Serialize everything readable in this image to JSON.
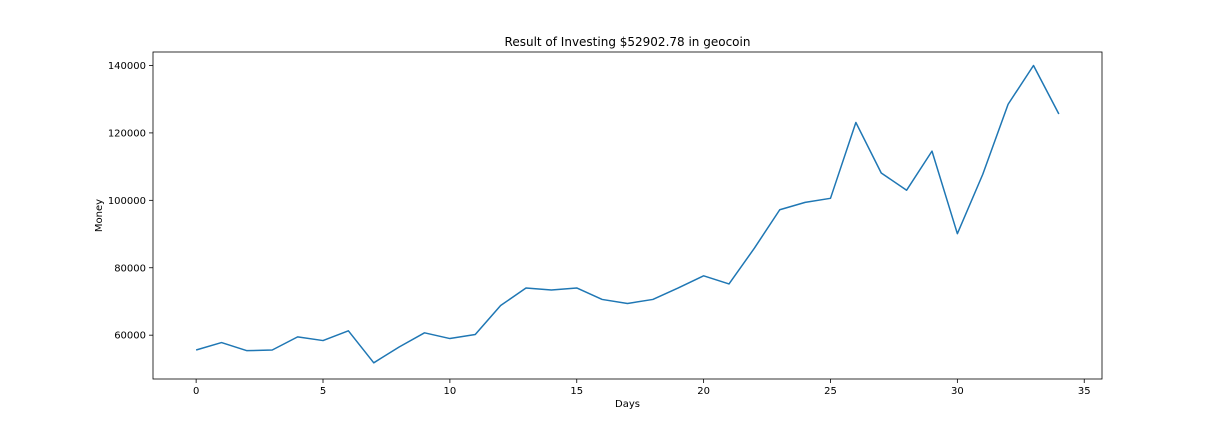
{
  "chart_data": {
    "type": "line",
    "title": "Result of Investing $52902.78 in geocoin",
    "xlabel": "Days",
    "ylabel": "Money",
    "xlim": [
      -1.7,
      35.7
    ],
    "ylim": [
      47000,
      144000
    ],
    "xticks": [
      0,
      5,
      10,
      15,
      20,
      25,
      30,
      35
    ],
    "xtick_labels": [
      "0",
      "5",
      "10",
      "15",
      "20",
      "25",
      "30",
      "35"
    ],
    "yticks": [
      60000,
      80000,
      100000,
      120000,
      140000
    ],
    "ytick_labels": [
      "60000",
      "80000",
      "100000",
      "120000",
      "140000"
    ],
    "grid": false,
    "series": [
      {
        "color": "#1f77b4",
        "x": [
          0,
          1,
          2,
          3,
          4,
          5,
          6,
          7,
          8,
          9,
          10,
          11,
          12,
          13,
          14,
          15,
          16,
          17,
          18,
          19,
          20,
          21,
          22,
          23,
          24,
          25,
          26,
          27,
          28,
          29,
          30,
          31,
          32,
          33,
          34
        ],
        "y": [
          55600,
          57800,
          55400,
          55600,
          59500,
          58400,
          61300,
          51800,
          56500,
          60700,
          59000,
          60200,
          68800,
          74000,
          73400,
          74000,
          70600,
          69400,
          70600,
          74000,
          77600,
          75200,
          85800,
          97200,
          99400,
          100600,
          123100,
          108100,
          103000,
          114600,
          90100,
          107700,
          128500,
          140000,
          125600
        ]
      }
    ]
  }
}
